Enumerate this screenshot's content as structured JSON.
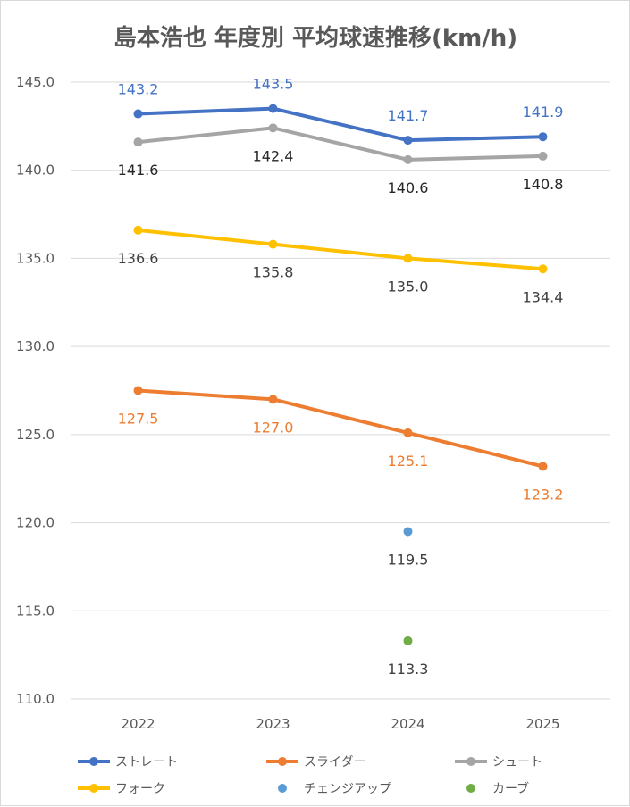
{
  "chart_data": {
    "type": "line",
    "title": "島本浩也 年度別 平均球速推移(km/h)",
    "xlabel": "",
    "ylabel": "",
    "categories": [
      "2022",
      "2023",
      "2024",
      "2025"
    ],
    "ylim": [
      110.0,
      145.0
    ],
    "yticks": [
      "110.0",
      "115.0",
      "120.0",
      "125.0",
      "130.0",
      "135.0",
      "140.0",
      "145.0"
    ],
    "grid": true,
    "legend_position": "bottom",
    "series": [
      {
        "name": "ストレート",
        "color": "#4472c4",
        "label_color": "#4472c4",
        "label_pos": "above",
        "values": [
          143.2,
          143.5,
          141.7,
          141.9
        ],
        "labels": [
          "143.2",
          "143.5",
          "141.7",
          "141.9"
        ]
      },
      {
        "name": "スライダー",
        "color": "#ed7d31",
        "label_color": "#ed7d31",
        "label_pos": "below",
        "values": [
          127.5,
          127.0,
          125.1,
          123.2
        ],
        "labels": [
          "127.5",
          "127.0",
          "125.1",
          "123.2"
        ]
      },
      {
        "name": "シュート",
        "color": "#a5a5a5",
        "label_color": "#262626",
        "label_pos": "below",
        "values": [
          141.6,
          142.4,
          140.6,
          140.8
        ],
        "labels": [
          "141.6",
          "142.4",
          "140.6",
          "140.8"
        ]
      },
      {
        "name": "フォーク",
        "color": "#ffc000",
        "label_color": "#404040",
        "label_pos": "below",
        "values": [
          136.6,
          135.8,
          135.0,
          134.4
        ],
        "labels": [
          "136.6",
          "135.8",
          "135.0",
          "134.4"
        ]
      },
      {
        "name": "チェンジアップ",
        "color": "#5b9bd5",
        "label_color": "#404040",
        "label_pos": "below",
        "values": [
          null,
          null,
          119.5,
          null
        ],
        "labels": [
          "",
          "",
          "119.5",
          ""
        ]
      },
      {
        "name": "カーブ",
        "color": "#70ad47",
        "label_color": "#404040",
        "label_pos": "below",
        "values": [
          null,
          null,
          113.3,
          null
        ],
        "labels": [
          "",
          "",
          "113.3",
          ""
        ]
      }
    ]
  }
}
